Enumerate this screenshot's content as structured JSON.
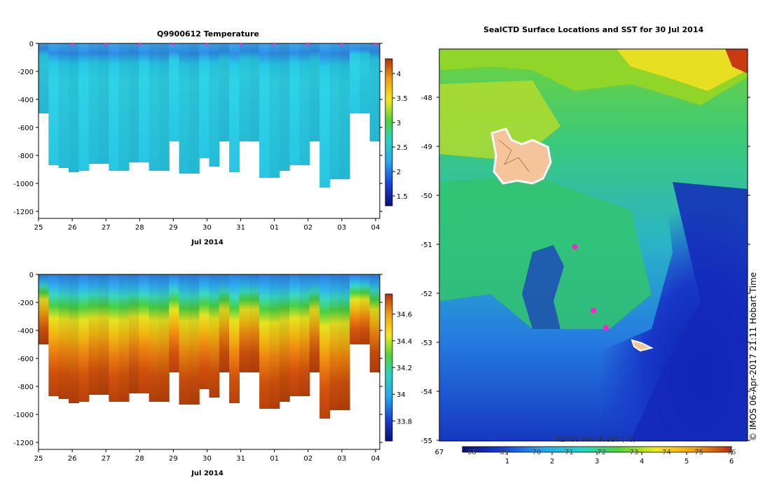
{
  "chart_data": [
    {
      "type": "heatmap",
      "title": "Q9900612  Temperature",
      "xlabel": "Jul 2014",
      "ylabel": "",
      "x_ticks": [
        "25",
        "26",
        "27",
        "28",
        "29",
        "30",
        "31",
        "01",
        "02",
        "03",
        "04"
      ],
      "y_ticks": [
        0,
        -200,
        -400,
        -600,
        -800,
        -1000,
        -1200
      ],
      "ylim": [
        -1250,
        0
      ],
      "colorbar": {
        "ticks": [
          1.5,
          2,
          2.5,
          3,
          3.5,
          4
        ],
        "range": [
          1.3,
          4.3
        ]
      },
      "profiles_max_depth": [
        -500,
        -870,
        -890,
        -920,
        -910,
        -860,
        -860,
        -910,
        -910,
        -850,
        -850,
        -910,
        -910,
        -700,
        -930,
        -930,
        -820,
        -880,
        -700,
        -920,
        -700,
        -700,
        -960,
        -960,
        -910,
        -870,
        -870,
        -700,
        -1030,
        -970,
        -970,
        -500,
        -500,
        -700
      ],
      "surface_markers": [
        "26",
        "27",
        "28",
        "29",
        "30",
        "31",
        "01",
        "02",
        "03",
        "04"
      ]
    },
    {
      "type": "heatmap",
      "title": "",
      "xlabel": "Jul 2014",
      "ylabel": "",
      "x_ticks": [
        "25",
        "26",
        "27",
        "28",
        "29",
        "30",
        "31",
        "01",
        "02",
        "03",
        "04"
      ],
      "y_ticks": [
        0,
        -200,
        -400,
        -600,
        -800,
        -1000,
        -1200
      ],
      "ylim": [
        -1250,
        0
      ],
      "colorbar": {
        "ticks": [
          33.8,
          34,
          34.2,
          34.4,
          34.6
        ],
        "range": [
          33.65,
          34.75
        ]
      },
      "profiles_max_depth": [
        -500,
        -870,
        -890,
        -920,
        -910,
        -860,
        -860,
        -910,
        -910,
        -850,
        -850,
        -910,
        -910,
        -700,
        -930,
        -930,
        -820,
        -880,
        -700,
        -920,
        -700,
        -700,
        -960,
        -960,
        -910,
        -870,
        -870,
        -700,
        -1030,
        -970,
        -970,
        -500,
        -500,
        -700
      ]
    },
    {
      "type": "heatmap",
      "title": "SealCTD Surface Locations and SST for 30 Jul 2014",
      "xlabel": "",
      "ylabel": "",
      "y_ticks": [
        "-48",
        "-49",
        "-50",
        "-51",
        "-52",
        "-53",
        "-54",
        "-55"
      ],
      "colorbar": {
        "label": "REMSS MW-IR SST (°C)",
        "ticks": [
          "1",
          "2",
          "3",
          "4",
          "5",
          "6"
        ],
        "fahrenheit_ticks": [
          "67",
          "68",
          "69",
          "70",
          "71",
          "72",
          "73",
          "74",
          "75",
          "76"
        ],
        "range": [
          0,
          6
        ]
      },
      "seal_positions": [
        {
          "lat": -51.05,
          "lon_frac": 0.44
        },
        {
          "lat": -52.7,
          "lon_frac": 0.54
        },
        {
          "lat": -52.35,
          "lon_frac": 0.5
        }
      ]
    }
  ],
  "footer_note": "© IMOS 06-Apr-2017 21:11 Hobart Time"
}
